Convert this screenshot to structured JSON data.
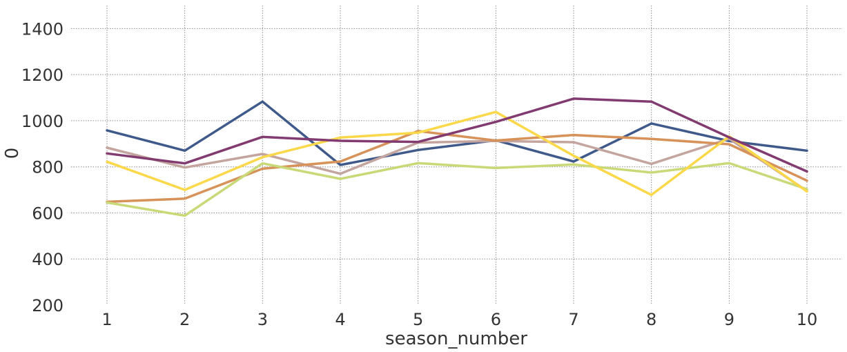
{
  "chart_data": {
    "type": "line",
    "xlabel": "season_number",
    "ylabel": "0",
    "x": [
      1,
      2,
      3,
      4,
      5,
      6,
      7,
      8,
      9,
      10
    ],
    "xtick_labels": [
      "1",
      "2",
      "3",
      "4",
      "5",
      "6",
      "7",
      "8",
      "9",
      "10"
    ],
    "ylim": [
      200,
      1500
    ],
    "yticks": [
      200,
      400,
      600,
      800,
      1000,
      1200,
      1400
    ],
    "ytick_labels": [
      "200",
      "400",
      "600",
      "800",
      "1000",
      "1200",
      "1400"
    ],
    "grid": true,
    "legend": "none",
    "series": [
      {
        "color": "#3f5a8a",
        "values": [
          958,
          870,
          1083,
          808,
          873,
          915,
          823,
          988,
          912,
          870
        ]
      },
      {
        "color": "#c4a49e",
        "values": [
          883,
          797,
          856,
          770,
          905,
          912,
          907,
          813,
          922,
          695
        ]
      },
      {
        "color": "#d69258",
        "values": [
          648,
          662,
          792,
          823,
          955,
          914,
          938,
          921,
          898,
          740
        ]
      },
      {
        "color": "#c9d977",
        "values": [
          645,
          588,
          815,
          748,
          816,
          795,
          810,
          775,
          816,
          703
        ]
      },
      {
        "color": "#fad84a",
        "values": [
          822,
          700,
          842,
          927,
          948,
          1038,
          848,
          678,
          932,
          693
        ]
      },
      {
        "color": "#823b70",
        "values": [
          858,
          815,
          930,
          913,
          908,
          995,
          1096,
          1083,
          928,
          780
        ]
      }
    ]
  }
}
